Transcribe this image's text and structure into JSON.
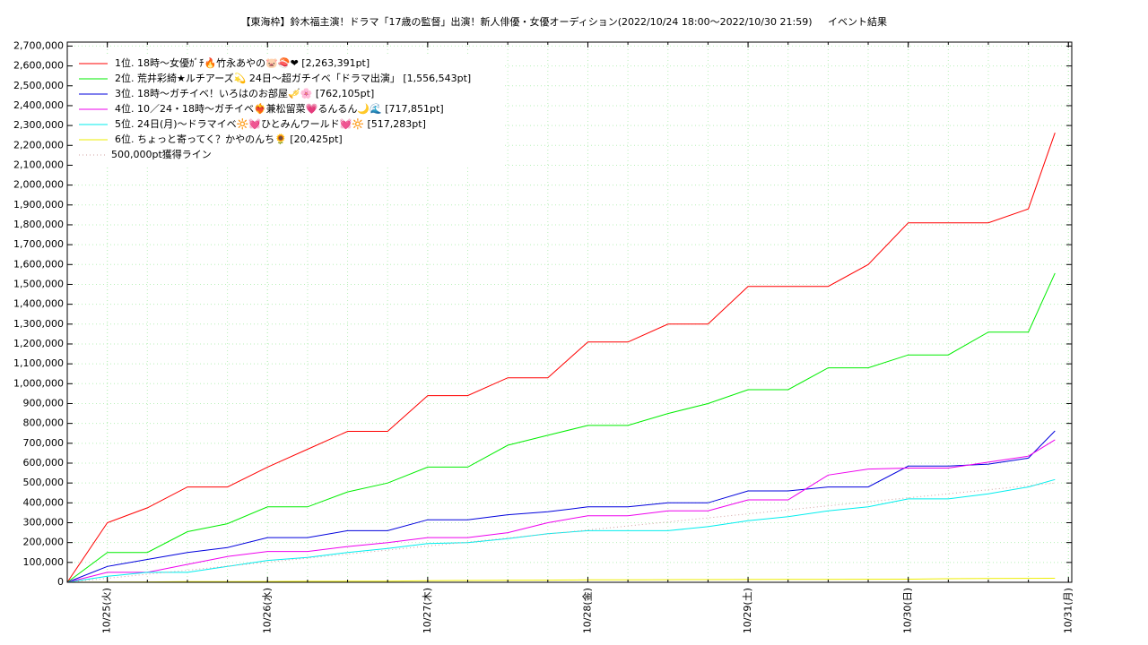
{
  "chart_data": {
    "type": "line",
    "title": "【東海枠】鈴木福主演！ドラマ「17歳の監督」出演！新人俳優・女優オーディション(2022/10/24 18:00～2022/10/30 21:59)",
    "subtitle": "イベント結果",
    "x": [
      "2022-10-24T18:00",
      "2022-10-25T00:00",
      "2022-10-25T06:00",
      "2022-10-25T12:00",
      "2022-10-25T18:00",
      "2022-10-26T00:00",
      "2022-10-26T06:00",
      "2022-10-26T12:00",
      "2022-10-26T18:00",
      "2022-10-27T00:00",
      "2022-10-27T06:00",
      "2022-10-27T12:00",
      "2022-10-27T18:00",
      "2022-10-28T00:00",
      "2022-10-28T06:00",
      "2022-10-28T12:00",
      "2022-10-28T18:00",
      "2022-10-29T00:00",
      "2022-10-29T06:00",
      "2022-10-29T12:00",
      "2022-10-29T18:00",
      "2022-10-30T00:00",
      "2022-10-30T06:00",
      "2022-10-30T12:00",
      "2022-10-30T18:00",
      "2022-10-30T21:59"
    ],
    "series": [
      {
        "name": "1位. 18時〜女優ｶﾞﾁ🔥竹永あやの🐷🍣❤ [2,263,391pt]",
        "color": "#ff0000",
        "values": [
          0,
          300000,
          375000,
          480000,
          480000,
          580000,
          670000,
          760000,
          760000,
          940000,
          940000,
          1030000,
          1030000,
          1210000,
          1210000,
          1300000,
          1300000,
          1490000,
          1490000,
          1490000,
          1600000,
          1810000,
          1810000,
          1810000,
          1880000,
          2263391
        ]
      },
      {
        "name": "2位. 荒井彩綺★ルチアーズ💫 24日〜超ガチイベ「ドラマ出演」 [1,556,543pt]",
        "color": "#00ee00",
        "values": [
          0,
          150000,
          150000,
          255000,
          295000,
          380000,
          380000,
          455000,
          500000,
          580000,
          580000,
          690000,
          740000,
          790000,
          790000,
          850000,
          900000,
          970000,
          970000,
          1080000,
          1080000,
          1145000,
          1145000,
          1260000,
          1260000,
          1556543
        ]
      },
      {
        "name": "3位. 18時〜ガチイベ！いろはのお部屋🎺🌸 [762,105pt]",
        "color": "#0000dd",
        "values": [
          0,
          80000,
          115000,
          150000,
          175000,
          225000,
          225000,
          260000,
          260000,
          315000,
          315000,
          340000,
          355000,
          380000,
          380000,
          400000,
          400000,
          460000,
          460000,
          480000,
          480000,
          585000,
          585000,
          595000,
          625000,
          762105
        ]
      },
      {
        "name": "4位. 10／24・18時〜ガチイベ❤️‍🔥兼松留菜💗るんるん🌙🌊 [717,851pt]",
        "color": "#ee00ee",
        "values": [
          0,
          50000,
          50000,
          90000,
          130000,
          155000,
          155000,
          180000,
          200000,
          225000,
          225000,
          250000,
          300000,
          335000,
          335000,
          360000,
          360000,
          415000,
          415000,
          540000,
          570000,
          575000,
          575000,
          605000,
          635000,
          717851
        ]
      },
      {
        "name": "5位. 24日(月)〜ドラマイベ🔆💓ひとみんワールド💓🔆 [517,283pt]",
        "color": "#00eeee",
        "values": [
          0,
          30000,
          50000,
          50000,
          80000,
          110000,
          125000,
          150000,
          170000,
          195000,
          200000,
          220000,
          245000,
          260000,
          260000,
          260000,
          280000,
          310000,
          330000,
          360000,
          380000,
          420000,
          420000,
          445000,
          480000,
          517283
        ]
      },
      {
        "name": "6位. ちょっと寄ってく？かやのんち🌻 [20,425pt]",
        "color": "#eeee00",
        "values": [
          0,
          1000,
          2000,
          3000,
          3500,
          4000,
          5000,
          5500,
          6000,
          8000,
          9000,
          10000,
          11000,
          12000,
          12500,
          13000,
          13500,
          14000,
          14500,
          15000,
          15500,
          16000,
          18000,
          19000,
          20000,
          20425
        ]
      },
      {
        "name": "500,000pt獲得ライン",
        "color": "#d0a0a0",
        "dashed": true,
        "x": [
          "2022-10-24T18:00",
          "2022-10-30T21:59"
        ],
        "values": [
          0,
          500000
        ]
      }
    ],
    "xlim": [
      "2022-10-24T18:00",
      "2022-10-31T00:30"
    ],
    "xticks": [
      {
        "value": "2022-10-25T00:00",
        "label": "10/25(火)"
      },
      {
        "value": "2022-10-26T00:00",
        "label": "10/26(水)"
      },
      {
        "value": "2022-10-27T00:00",
        "label": "10/27(木)"
      },
      {
        "value": "2022-10-28T00:00",
        "label": "10/28(金)"
      },
      {
        "value": "2022-10-29T00:00",
        "label": "10/29(土)"
      },
      {
        "value": "2022-10-30T00:00",
        "label": "10/30(日)"
      },
      {
        "value": "2022-10-31T00:00",
        "label": "10/31(月)"
      }
    ],
    "ylim": [
      0,
      2720000
    ],
    "yticks": [
      0,
      {
        "value": 100000,
        "label": "100,000"
      },
      {
        "value": 200000,
        "label": "200,000"
      },
      {
        "value": 300000,
        "label": "300,000"
      },
      {
        "value": 400000,
        "label": "400,000"
      },
      {
        "value": 500000,
        "label": "500,000"
      },
      {
        "value": 600000,
        "label": "600,000"
      },
      {
        "value": 700000,
        "label": "700,000"
      },
      {
        "value": 800000,
        "label": "800,000"
      },
      {
        "value": 900000,
        "label": "900,000"
      },
      {
        "value": 1000000,
        "label": "1,000,000"
      },
      {
        "value": 1100000,
        "label": "1,100,000"
      },
      {
        "value": 1200000,
        "label": "1,200,000"
      },
      {
        "value": 1300000,
        "label": "1,300,000"
      },
      {
        "value": 1400000,
        "label": "1,400,000"
      },
      {
        "value": 1500000,
        "label": "1,500,000"
      },
      {
        "value": 1600000,
        "label": "1,600,000"
      },
      {
        "value": 1700000,
        "label": "1,700,000"
      },
      {
        "value": 1800000,
        "label": "1,800,000"
      },
      {
        "value": 1900000,
        "label": "1,900,000"
      },
      {
        "value": 2000000,
        "label": "2,000,000"
      },
      {
        "value": 2100000,
        "label": "2,100,000"
      },
      {
        "value": 2200000,
        "label": "2,200,000"
      },
      {
        "value": 2300000,
        "label": "2,300,000"
      },
      {
        "value": 2400000,
        "label": "2,400,000"
      },
      {
        "value": 2500000,
        "label": "2,500,000"
      },
      {
        "value": 2600000,
        "label": "2,600,000"
      },
      {
        "value": 2700000,
        "label": "2,700,000"
      }
    ],
    "grid": true,
    "grid_color": "#b8f0b8",
    "minor_grid_hours": 6,
    "legend": "upper left"
  }
}
